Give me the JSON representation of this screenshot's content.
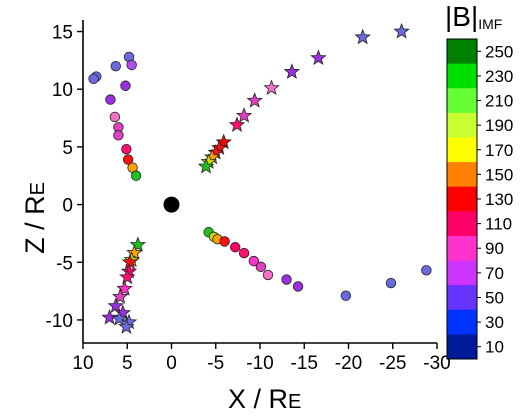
{
  "chart_data": {
    "type": "scatter",
    "title": "",
    "xlabel_main": "X / R",
    "xlabel_sub": "E",
    "ylabel_main": "Z / R",
    "ylabel_sub": "E",
    "xlim": [
      10,
      -30
    ],
    "ylim": [
      -12,
      16
    ],
    "x_reversed": true,
    "xticks": [
      10,
      5,
      0,
      -5,
      -10,
      -15,
      -20,
      -25,
      -30
    ],
    "yticks": [
      15,
      10,
      5,
      0,
      -5,
      -10
    ],
    "grid": false,
    "colorbar": {
      "title_main": "|B|",
      "title_sub": "IMF",
      "labels": [
        "250",
        "230",
        "210",
        "190",
        "170",
        "150",
        "130",
        "110",
        "90",
        "70",
        "50",
        "30",
        "10"
      ],
      "colors": [
        "#008000",
        "#00e000",
        "#66ff33",
        "#c8ff33",
        "#ffff00",
        "#ff8000",
        "#ff0000",
        "#ff0066",
        "#ff33cc",
        "#cc33ff",
        "#6633ff",
        "#0033ff",
        "#001a99"
      ]
    },
    "earth": {
      "x": 0,
      "y": 0,
      "color": "#000000"
    },
    "series": [
      {
        "marker": "circle",
        "points": [
          {
            "x": 4.8,
            "y": 12.8,
            "color": "#6a6ae0"
          },
          {
            "x": 4.5,
            "y": 12.1,
            "color": "#b24ee8"
          },
          {
            "x": 6.3,
            "y": 12.0,
            "color": "#6a6ae0"
          },
          {
            "x": 8.5,
            "y": 11.1,
            "color": "#6a6ae0"
          },
          {
            "x": 8.8,
            "y": 10.9,
            "color": "#6a6ae0"
          },
          {
            "x": 5.2,
            "y": 10.3,
            "color": "#9b30e0"
          },
          {
            "x": 6.9,
            "y": 9.1,
            "color": "#9b30e0"
          },
          {
            "x": 6.4,
            "y": 7.6,
            "color": "#f570c8"
          },
          {
            "x": 6.0,
            "y": 6.7,
            "color": "#e040c0"
          },
          {
            "x": 6.0,
            "y": 6.0,
            "color": "#e040c0"
          },
          {
            "x": 5.1,
            "y": 4.8,
            "color": "#ff1070"
          },
          {
            "x": 4.9,
            "y": 3.9,
            "color": "#ff1010"
          },
          {
            "x": 4.4,
            "y": 3.2,
            "color": "#ffa000"
          },
          {
            "x": 4.0,
            "y": 2.5,
            "color": "#20c020"
          },
          {
            "x": -4.2,
            "y": -2.4,
            "color": "#20c020"
          },
          {
            "x": -4.8,
            "y": -2.8,
            "color": "#c8e000"
          },
          {
            "x": -5.2,
            "y": -3.0,
            "color": "#ffa000"
          },
          {
            "x": -6.0,
            "y": -3.2,
            "color": "#ff1010"
          },
          {
            "x": -7.2,
            "y": -3.7,
            "color": "#ff0066"
          },
          {
            "x": -8.2,
            "y": -4.2,
            "color": "#ff1070"
          },
          {
            "x": -9.3,
            "y": -4.9,
            "color": "#ff33cc"
          },
          {
            "x": -10.1,
            "y": -5.4,
            "color": "#e040c0"
          },
          {
            "x": -10.9,
            "y": -6.1,
            "color": "#f570c8"
          },
          {
            "x": -13.0,
            "y": -6.5,
            "color": "#9b30e0"
          },
          {
            "x": -14.3,
            "y": -7.1,
            "color": "#9b30e0"
          },
          {
            "x": -19.7,
            "y": -7.9,
            "color": "#6a6ae0"
          },
          {
            "x": -24.8,
            "y": -6.8,
            "color": "#6a6ae0"
          },
          {
            "x": -28.8,
            "y": -5.7,
            "color": "#6a6ae0"
          }
        ]
      },
      {
        "marker": "star",
        "points": [
          {
            "x": -26.0,
            "y": 15.0,
            "color": "#6a6ae0"
          },
          {
            "x": -21.6,
            "y": 14.5,
            "color": "#6a6ae0"
          },
          {
            "x": -16.6,
            "y": 12.7,
            "color": "#9b30e0"
          },
          {
            "x": -13.6,
            "y": 11.5,
            "color": "#9b30e0"
          },
          {
            "x": -11.3,
            "y": 10.1,
            "color": "#f570c8"
          },
          {
            "x": -9.4,
            "y": 9.0,
            "color": "#e040c0"
          },
          {
            "x": -8.2,
            "y": 7.7,
            "color": "#e040c0"
          },
          {
            "x": -7.4,
            "y": 6.9,
            "color": "#ff1070"
          },
          {
            "x": -5.9,
            "y": 5.4,
            "color": "#ff0000"
          },
          {
            "x": -5.4,
            "y": 4.9,
            "color": "#ff1010"
          },
          {
            "x": -5.0,
            "y": 4.5,
            "color": "#ff1010"
          },
          {
            "x": -4.6,
            "y": 4.1,
            "color": "#ffa000"
          },
          {
            "x": -4.2,
            "y": 3.7,
            "color": "#c8e000"
          },
          {
            "x": -3.9,
            "y": 3.3,
            "color": "#20c020"
          },
          {
            "x": 3.8,
            "y": -3.5,
            "color": "#20c020"
          },
          {
            "x": 4.2,
            "y": -4.2,
            "color": "#ffa000"
          },
          {
            "x": 4.5,
            "y": -4.8,
            "color": "#c8e000"
          },
          {
            "x": 4.7,
            "y": -5.0,
            "color": "#ff1010"
          },
          {
            "x": 4.8,
            "y": -5.8,
            "color": "#ff0066"
          },
          {
            "x": 5.0,
            "y": -6.3,
            "color": "#ff1070"
          },
          {
            "x": 5.3,
            "y": -7.3,
            "color": "#ff33cc"
          },
          {
            "x": 5.8,
            "y": -8.0,
            "color": "#e040c0"
          },
          {
            "x": 6.3,
            "y": -8.8,
            "color": "#9b30e0"
          },
          {
            "x": 5.5,
            "y": -9.4,
            "color": "#9b30e0"
          },
          {
            "x": 7.0,
            "y": -9.8,
            "color": "#9b30e0"
          },
          {
            "x": 5.9,
            "y": -9.9,
            "color": "#6a6ae0"
          },
          {
            "x": 4.8,
            "y": -10.2,
            "color": "#6a6ae0"
          },
          {
            "x": 5.1,
            "y": -10.6,
            "color": "#6a6ae0"
          }
        ]
      }
    ]
  }
}
